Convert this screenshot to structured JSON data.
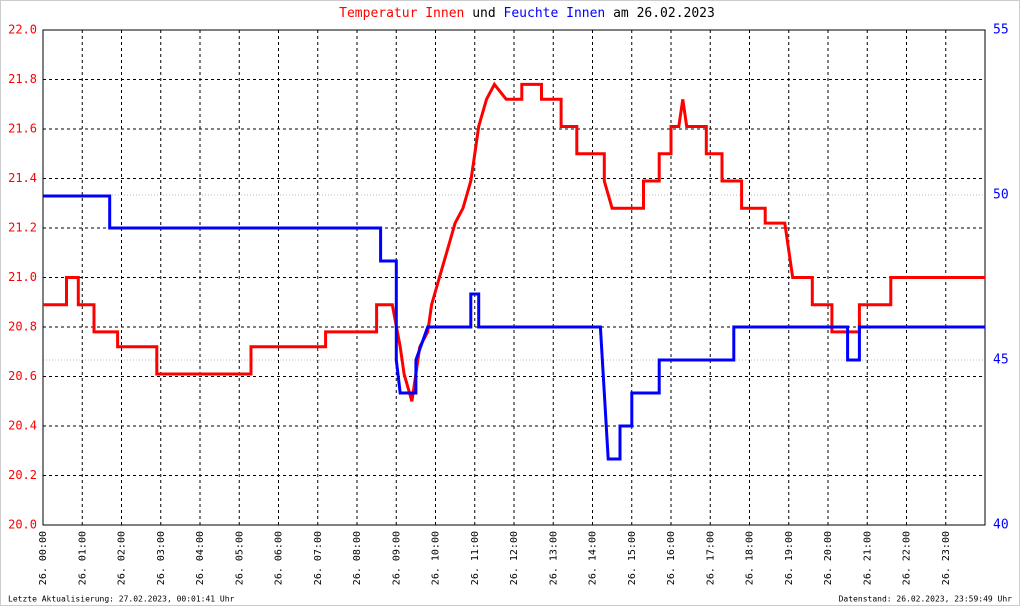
{
  "chart_data": {
    "type": "line",
    "title_parts": [
      "und",
      "am 26.02.2023"
    ],
    "footer_left": "Letzte Aktualisierung: 27.02.2023, 00:01:41 Uhr",
    "footer_right": "Datenstand: 26.02.2023, 23:59:49 Uhr",
    "xlim": [
      0,
      24
    ],
    "xticks": [
      {
        "value": 0,
        "label": "26. 00:00"
      },
      {
        "value": 1,
        "label": "26. 01:00"
      },
      {
        "value": 2,
        "label": "26. 02:00"
      },
      {
        "value": 3,
        "label": "26. 03:00"
      },
      {
        "value": 4,
        "label": "26. 04:00"
      },
      {
        "value": 5,
        "label": "26. 05:00"
      },
      {
        "value": 6,
        "label": "26. 06:00"
      },
      {
        "value": 7,
        "label": "26. 07:00"
      },
      {
        "value": 8,
        "label": "26. 08:00"
      },
      {
        "value": 9,
        "label": "26. 09:00"
      },
      {
        "value": 10,
        "label": "26. 10:00"
      },
      {
        "value": 11,
        "label": "26. 11:00"
      },
      {
        "value": 12,
        "label": "26. 12:00"
      },
      {
        "value": 13,
        "label": "26. 13:00"
      },
      {
        "value": 14,
        "label": "26. 14:00"
      },
      {
        "value": 15,
        "label": "26. 15:00"
      },
      {
        "value": 16,
        "label": "26. 16:00"
      },
      {
        "value": 17,
        "label": "26. 17:00"
      },
      {
        "value": 18,
        "label": "26. 18:00"
      },
      {
        "value": 19,
        "label": "26. 19:00"
      },
      {
        "value": 20,
        "label": "26. 20:00"
      },
      {
        "value": 21,
        "label": "26. 21:00"
      },
      {
        "value": 22,
        "label": "26. 22:00"
      },
      {
        "value": 23,
        "label": "26. 23:00"
      }
    ],
    "ylim": [
      20,
      22
    ],
    "yticks": [
      {
        "value": 20,
        "label": "20.0"
      },
      {
        "value": 20.2,
        "label": "20.2"
      },
      {
        "value": 20.4,
        "label": "20.4"
      },
      {
        "value": 20.6,
        "label": "20.6"
      },
      {
        "value": 20.8,
        "label": "20.8"
      },
      {
        "value": 21,
        "label": "21.0"
      },
      {
        "value": 21.2,
        "label": "21.2"
      },
      {
        "value": 21.4,
        "label": "21.4"
      },
      {
        "value": 21.6,
        "label": "21.6"
      },
      {
        "value": 21.8,
        "label": "21.8"
      },
      {
        "value": 22,
        "label": "22.0"
      }
    ],
    "y2lim": [
      40,
      55
    ],
    "y2ticks": [
      40,
      45,
      50,
      55
    ],
    "grid": true,
    "series": [
      {
        "name": "Temperatur Innen",
        "color": "#ff0000",
        "x": [
          0,
          0.6,
          0.6,
          0.9,
          0.9,
          1.3,
          1.3,
          1.9,
          1.9,
          2.9,
          2.9,
          5.3,
          5.3,
          7.2,
          7.2,
          8.5,
          8.5,
          8.9,
          9.1,
          9.2,
          9.4,
          9.5,
          9.6,
          9.8,
          9.9,
          10.1,
          10.3,
          10.5,
          10.7,
          10.9,
          11.0,
          11.1,
          11.3,
          11.5,
          11.8,
          12.2,
          12.2,
          12.7,
          12.7,
          13.2,
          13.2,
          13.6,
          13.6,
          14.3,
          14.3,
          14.5,
          15.3,
          15.3,
          15.7,
          15.7,
          16.0,
          16.0,
          16.2,
          16.3,
          16.4,
          16.9,
          16.9,
          17.3,
          17.3,
          17.8,
          17.8,
          18.4,
          18.4,
          18.9,
          19.1,
          19.6,
          19.6,
          20.1,
          20.1,
          20.8,
          20.8,
          21.6,
          21.6,
          24
        ],
        "values": [
          20.89,
          20.89,
          21.0,
          21.0,
          20.89,
          20.89,
          20.78,
          20.78,
          20.72,
          20.72,
          20.61,
          20.61,
          20.72,
          20.72,
          20.78,
          20.78,
          20.89,
          20.89,
          20.72,
          20.61,
          20.5,
          20.61,
          20.72,
          20.78,
          20.89,
          21.0,
          21.11,
          21.22,
          21.28,
          21.39,
          21.5,
          21.61,
          21.72,
          21.78,
          21.72,
          21.72,
          21.78,
          21.78,
          21.72,
          21.72,
          21.61,
          21.61,
          21.5,
          21.5,
          21.39,
          21.28,
          21.28,
          21.39,
          21.39,
          21.5,
          21.5,
          21.61,
          21.61,
          21.72,
          21.61,
          21.61,
          21.5,
          21.5,
          21.39,
          21.39,
          21.28,
          21.28,
          21.22,
          21.22,
          21.0,
          21.0,
          20.89,
          20.89,
          20.78,
          20.78,
          20.89,
          20.89,
          21.0,
          21.0
        ]
      },
      {
        "name": "Feuchte Innen",
        "color": "#0000ff",
        "axis": "y2",
        "x": [
          0,
          1.7,
          1.7,
          8.6,
          8.6,
          9.0,
          9.0,
          9.1,
          9.5,
          9.5,
          9.8,
          10.9,
          10.9,
          11.1,
          11.1,
          14.2,
          14.4,
          14.7,
          14.7,
          15.0,
          15.0,
          15.7,
          15.7,
          17.6,
          17.6,
          20.5,
          20.5,
          20.8,
          20.8,
          24
        ],
        "values": [
          49.97,
          49.97,
          49.0,
          49.0,
          48.0,
          48.0,
          45.0,
          44.0,
          44.0,
          45.0,
          46.0,
          46.0,
          47.0,
          47.0,
          46.0,
          46.0,
          42.0,
          42.0,
          43.0,
          43.0,
          44.0,
          44.0,
          45.0,
          45.0,
          46.0,
          46.0,
          45.0,
          45.0,
          46.0,
          46.0
        ]
      }
    ]
  }
}
